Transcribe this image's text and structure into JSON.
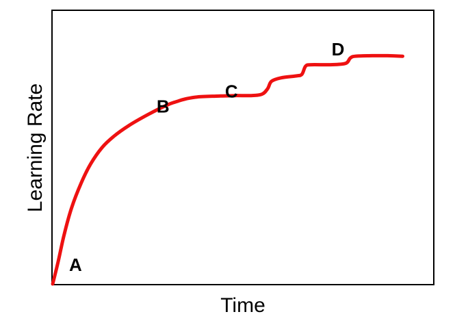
{
  "chart_data": {
    "type": "line",
    "title": "",
    "xlabel": "Time",
    "ylabel": "Learning Rate",
    "xlim": [
      0,
      100
    ],
    "ylim": [
      0,
      100
    ],
    "grid": false,
    "legend": "none",
    "axis_ticks": false,
    "series": [
      {
        "color": "#ee1111",
        "points": [
          [
            0,
            0
          ],
          [
            1.5,
            8.5
          ],
          [
            3,
            18
          ],
          [
            5,
            28
          ],
          [
            7.5,
            37
          ],
          [
            10,
            44
          ],
          [
            13,
            50
          ],
          [
            16,
            54
          ],
          [
            20,
            58
          ],
          [
            25,
            62
          ],
          [
            30,
            65.5
          ],
          [
            33,
            67
          ],
          [
            35,
            67.8
          ],
          [
            38,
            68.5
          ],
          [
            43,
            68.8
          ],
          [
            48,
            69
          ],
          [
            52,
            69
          ],
          [
            55,
            69.5
          ],
          [
            56.5,
            71.5
          ],
          [
            57.5,
            74.2
          ],
          [
            60,
            75.5
          ],
          [
            64,
            76.2
          ],
          [
            65.5,
            76.8
          ],
          [
            66.5,
            79.8
          ],
          [
            68,
            80.3
          ],
          [
            73,
            80.3
          ],
          [
            77,
            80.8
          ],
          [
            78.2,
            82.7
          ],
          [
            79.5,
            83.4
          ],
          [
            84,
            83.6
          ],
          [
            88,
            83.6
          ],
          [
            92,
            83.4
          ]
        ]
      }
    ],
    "annotations": [
      {
        "text": "A",
        "x": 6,
        "y": 7
      },
      {
        "text": "B",
        "x": 29,
        "y": 65
      },
      {
        "text": "C",
        "x": 47,
        "y": 70.5
      },
      {
        "text": "D",
        "x": 75,
        "y": 86
      }
    ],
    "colors": {
      "line": "#ee1111",
      "frame": "#000000",
      "background": "#ffffff"
    }
  }
}
